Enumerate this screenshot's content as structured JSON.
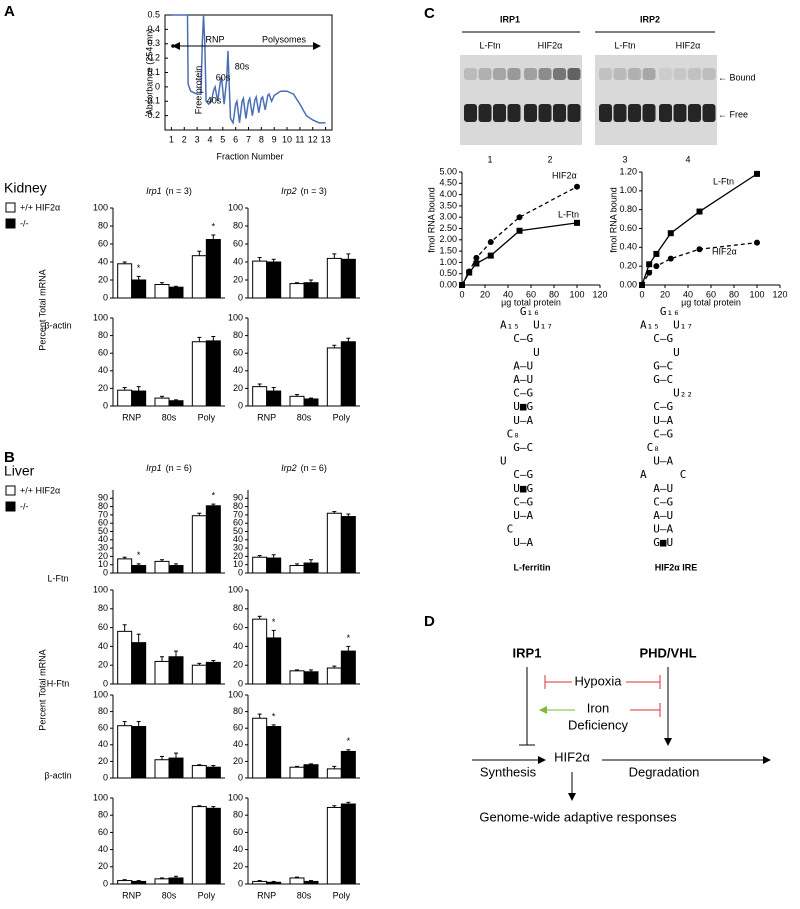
{
  "panels": [
    "A",
    "B",
    "C",
    "D"
  ],
  "chart_data": [
    {
      "type": "line",
      "ylabel": "Absorbance (254 mn)",
      "xlabel": "Fraction Number",
      "xlim": [
        0.5,
        13.5
      ],
      "xticks": [
        1,
        2,
        3,
        4,
        5,
        6,
        7,
        8,
        9,
        10,
        11,
        12,
        13
      ],
      "ylim": [
        -0.3,
        0.5
      ],
      "yticks": [
        -0.2,
        -0.1,
        0,
        0.1,
        0.2,
        0.3,
        0.4,
        0.5
      ],
      "annotations": [
        "RNP",
        "Polysomes",
        "Free protein",
        "40s",
        "60s",
        "80s"
      ],
      "x": [
        1,
        1.5,
        2,
        2.25,
        2.3,
        2.5,
        3,
        3.3,
        3.4,
        3.5,
        3.6,
        3.7,
        3.9,
        4.1,
        4.3,
        4.4,
        4.6,
        4.8,
        4.9,
        5.1,
        5.3,
        5.4,
        5.6,
        5.8,
        6.0,
        6.1,
        6.3,
        6.5,
        6.6,
        6.8,
        7.0,
        7.1,
        7.3,
        7.5,
        7.6,
        7.8,
        8.0,
        8.1,
        8.3,
        8.5,
        8.6,
        8.8,
        9.0,
        9.5,
        10,
        10.5,
        11,
        11.5,
        12,
        12.5,
        13
      ],
      "series": [
        {
          "color": "#4a6fb5",
          "values": [
            0.5,
            0.5,
            0.5,
            0.5,
            0.02,
            -0.03,
            -0.05,
            -0.05,
            0.3,
            0.5,
            0.3,
            -0.1,
            -0.12,
            -0.1,
            -0.02,
            0.0,
            -0.1,
            0.03,
            0.07,
            -0.12,
            0.05,
            0.25,
            -0.22,
            -0.25,
            -0.12,
            -0.1,
            -0.25,
            -0.1,
            -0.08,
            -0.22,
            -0.1,
            -0.08,
            -0.2,
            -0.09,
            -0.07,
            -0.18,
            -0.08,
            -0.07,
            -0.16,
            -0.06,
            -0.05,
            -0.1,
            -0.06,
            -0.03,
            -0.03,
            -0.05,
            -0.12,
            -0.2,
            -0.23,
            -0.25,
            -0.25
          ]
        }
      ]
    },
    {
      "type": "bar",
      "group_title": "Kidney",
      "ylabel": "Percent Total mRNA",
      "title": "Irp1",
      "subtitle": "(n = 3)",
      "categories": [
        null,
        null,
        null
      ],
      "ylim": [
        0,
        100
      ],
      "yticks": [
        0,
        20,
        40,
        60,
        80,
        100
      ],
      "series": [
        {
          "name": "+/+  HIF2α",
          "color": "#ffffff",
          "values": [
            38,
            15,
            47
          ],
          "errors": [
            2,
            2,
            5
          ]
        },
        {
          "name": "-/-",
          "color": "#000000",
          "values": [
            20,
            12,
            65
          ],
          "errors": [
            4,
            1,
            5
          ],
          "significance": [
            "*",
            null,
            "*"
          ]
        }
      ]
    },
    {
      "type": "bar",
      "title": "Irp2",
      "subtitle": "(n = 3)",
      "categories": [
        null,
        null,
        null
      ],
      "ylim": [
        0,
        100
      ],
      "yticks": [
        0,
        20,
        40,
        60,
        80,
        100
      ],
      "series": [
        {
          "color": "#ffffff",
          "values": [
            41,
            16,
            44
          ],
          "errors": [
            4,
            1,
            5
          ]
        },
        {
          "color": "#000000",
          "values": [
            40,
            17,
            43
          ],
          "errors": [
            3,
            3,
            6
          ]
        }
      ]
    },
    {
      "type": "bar",
      "row_label": "β-actin",
      "categories": [
        "RNP",
        "80s",
        "Poly"
      ],
      "ylim": [
        0,
        100
      ],
      "yticks": [
        0,
        20,
        40,
        60,
        80,
        100
      ],
      "series": [
        {
          "color": "#ffffff",
          "values": [
            18,
            9,
            73
          ],
          "errors": [
            3,
            2,
            5
          ]
        },
        {
          "color": "#000000",
          "values": [
            17,
            6,
            74
          ],
          "errors": [
            5,
            1,
            5
          ]
        }
      ]
    },
    {
      "type": "bar",
      "categories": [
        "RNP",
        "80s",
        "Poly"
      ],
      "ylim": [
        0,
        100
      ],
      "yticks": [
        0,
        20,
        40,
        60,
        80,
        100
      ],
      "series": [
        {
          "color": "#ffffff",
          "values": [
            22,
            11,
            66
          ],
          "errors": [
            3,
            2,
            3
          ]
        },
        {
          "color": "#000000",
          "values": [
            17,
            8,
            73
          ],
          "errors": [
            4,
            1,
            4
          ]
        }
      ]
    },
    {
      "type": "bar",
      "group_title": "Liver",
      "ylabel": "Percent Total mRNA",
      "title": "Irp1",
      "subtitle": "(n = 6)",
      "categories": [
        null,
        null,
        null
      ],
      "ylim": [
        0,
        100
      ],
      "yticks": [
        0,
        10,
        20,
        30,
        40,
        50,
        60,
        70,
        80,
        90
      ],
      "series": [
        {
          "name": "+/+  HIF2α",
          "color": "#ffffff",
          "values": [
            17,
            14,
            69
          ],
          "errors": [
            2,
            2,
            3
          ]
        },
        {
          "name": "-/-",
          "color": "#000000",
          "values": [
            9,
            9,
            81
          ],
          "errors": [
            2,
            2,
            2
          ],
          "significance": [
            "*",
            null,
            "*"
          ]
        }
      ]
    },
    {
      "type": "bar",
      "title": "Irp2",
      "subtitle": "(n = 6)",
      "categories": [
        null,
        null,
        null
      ],
      "ylim": [
        0,
        100
      ],
      "yticks": [
        0,
        10,
        20,
        30,
        40,
        50,
        60,
        70,
        80,
        90
      ],
      "series": [
        {
          "color": "#ffffff",
          "values": [
            19,
            9,
            72
          ],
          "errors": [
            2,
            2,
            2
          ]
        },
        {
          "color": "#000000",
          "values": [
            18,
            12,
            68
          ],
          "errors": [
            4,
            4,
            3
          ]
        }
      ]
    },
    {
      "type": "bar",
      "row_label": "L-Ftn",
      "categories": [
        null,
        null,
        null
      ],
      "ylim": [
        0,
        100
      ],
      "yticks": [
        0,
        20,
        40,
        60,
        80,
        100
      ],
      "series": [
        {
          "color": "#ffffff",
          "values": [
            56,
            24,
            20
          ],
          "errors": [
            7,
            5,
            2
          ]
        },
        {
          "color": "#000000",
          "values": [
            44,
            29,
            23
          ],
          "errors": [
            9,
            6,
            2
          ]
        }
      ]
    },
    {
      "type": "bar",
      "categories": [
        null,
        null,
        null
      ],
      "ylim": [
        0,
        100
      ],
      "yticks": [
        0,
        20,
        40,
        60,
        80,
        100
      ],
      "series": [
        {
          "color": "#ffffff",
          "values": [
            69,
            14,
            17
          ],
          "errors": [
            3,
            1,
            2
          ]
        },
        {
          "color": "#000000",
          "values": [
            49,
            13,
            35
          ],
          "errors": [
            8,
            2,
            5
          ],
          "significance": [
            "*",
            null,
            "*"
          ]
        }
      ]
    },
    {
      "type": "bar",
      "row_label": "H-Ftn",
      "categories": [
        null,
        null,
        null
      ],
      "ylim": [
        0,
        100
      ],
      "yticks": [
        0,
        20,
        40,
        60,
        80,
        100
      ],
      "series": [
        {
          "color": "#ffffff",
          "values": [
            63,
            22,
            15
          ],
          "errors": [
            5,
            4,
            1
          ]
        },
        {
          "color": "#000000",
          "values": [
            62,
            24,
            13
          ],
          "errors": [
            6,
            6,
            2
          ]
        }
      ]
    },
    {
      "type": "bar",
      "categories": [
        null,
        null,
        null
      ],
      "ylim": [
        0,
        100
      ],
      "yticks": [
        0,
        20,
        40,
        60,
        80,
        100
      ],
      "series": [
        {
          "color": "#ffffff",
          "values": [
            72,
            13,
            11
          ],
          "errors": [
            5,
            1,
            3
          ]
        },
        {
          "color": "#000000",
          "values": [
            62,
            16,
            32
          ],
          "errors": [
            2,
            1,
            2
          ],
          "significance": [
            "*",
            null,
            "*"
          ]
        }
      ]
    },
    {
      "type": "bar",
      "row_label": "β-actin",
      "categories": [
        "RNP",
        "80s",
        "Poly"
      ],
      "ylim": [
        0,
        100
      ],
      "yticks": [
        0,
        20,
        40,
        60,
        80,
        100
      ],
      "series": [
        {
          "color": "#ffffff",
          "values": [
            4,
            6,
            90
          ],
          "errors": [
            1,
            1,
            1
          ]
        },
        {
          "color": "#000000",
          "values": [
            3,
            7,
            88
          ],
          "errors": [
            1,
            2,
            2
          ]
        }
      ]
    },
    {
      "type": "bar",
      "categories": [
        "RNP",
        "80s",
        "Poly"
      ],
      "ylim": [
        0,
        100
      ],
      "yticks": [
        0,
        20,
        40,
        60,
        80,
        100
      ],
      "series": [
        {
          "color": "#ffffff",
          "values": [
            3,
            7,
            89
          ],
          "errors": [
            1,
            1,
            2
          ]
        },
        {
          "color": "#000000",
          "values": [
            2,
            3,
            93
          ],
          "errors": [
            1,
            1,
            2
          ]
        }
      ]
    },
    {
      "type": "line",
      "ylabel": "fmol RNA bound",
      "xlabel": "µg total protein",
      "xlim": [
        0,
        120
      ],
      "xticks": [
        0,
        20,
        40,
        60,
        80,
        100,
        120
      ],
      "ylim": [
        0,
        5
      ],
      "yticks": [
        {
          "value": 0,
          "label": "0.00"
        },
        {
          "value": 0.5,
          "label": "0.50"
        },
        {
          "value": 1,
          "label": "1.00"
        },
        {
          "value": 1.5,
          "label": "1.50"
        },
        {
          "value": 2,
          "label": "2.00"
        },
        {
          "value": 2.5,
          "label": "2.50"
        },
        {
          "value": 3,
          "label": "3.00"
        },
        {
          "value": 3.5,
          "label": "3.50"
        },
        {
          "value": 4,
          "label": "4.00"
        },
        {
          "value": 4.5,
          "label": "4.50"
        },
        {
          "value": 5,
          "label": "5.00"
        }
      ],
      "x": [
        0,
        6.25,
        12.5,
        25,
        50,
        100
      ],
      "series": [
        {
          "name": "HIF2α",
          "color": "#000000",
          "marker": "circle",
          "dash": true,
          "values": [
            0,
            0.6,
            1.2,
            1.9,
            3.0,
            4.35
          ]
        },
        {
          "name": "L-Ftn",
          "color": "#000000",
          "marker": "square",
          "dash": false,
          "values": [
            0,
            0.55,
            0.95,
            1.3,
            2.4,
            2.75
          ]
        }
      ]
    },
    {
      "type": "line",
      "ylabel": "fmol RNA bound",
      "xlabel": "µg total protein",
      "xlim": [
        0,
        120
      ],
      "xticks": [
        0,
        20,
        40,
        60,
        80,
        100,
        120
      ],
      "ylim": [
        0,
        1.2
      ],
      "yticks": [
        {
          "value": 0,
          "label": "0.00"
        },
        {
          "value": 0.2,
          "label": "0.20"
        },
        {
          "value": 0.4,
          "label": "0.40"
        },
        {
          "value": 0.6,
          "label": "0.60"
        },
        {
          "value": 0.8,
          "label": "0.80"
        },
        {
          "value": 1,
          "label": "1.00"
        },
        {
          "value": 1.2,
          "label": "1.20"
        }
      ],
      "x": [
        0,
        6.25,
        12.5,
        25,
        50,
        100
      ],
      "series": [
        {
          "name": "HIF2α",
          "color": "#000000",
          "marker": "circle",
          "dash": true,
          "values": [
            0,
            0.13,
            0.2,
            0.28,
            0.38,
            0.45
          ]
        },
        {
          "name": "L-Ftn",
          "color": "#000000",
          "marker": "square",
          "dash": false,
          "values": [
            0,
            0.22,
            0.33,
            0.55,
            0.78,
            1.18
          ]
        }
      ]
    }
  ],
  "gel": {
    "headers": [
      "IRP1",
      "IRP2"
    ],
    "lanes": [
      "L-Ftn",
      "HIF2α",
      "L-Ftn",
      "HIF2α"
    ],
    "numbers": [
      "1",
      "2",
      "3",
      "4"
    ],
    "bands": [
      "← Bound",
      "← Free"
    ]
  },
  "rna": [
    {
      "label": "L-ferritin",
      "rows": [
        "   G₁₆",
        "A₁₅  U₁₇",
        "  C–G",
        "     U",
        "  A–U",
        "  A–U",
        "  C–G",
        "  U■G",
        "  U–A",
        " C₈",
        "  G–C",
        "U",
        "  C–G",
        "  U■G",
        "  C–G",
        "  U–A",
        " C",
        "  U–A"
      ]
    },
    {
      "label": "HIF2α IRE",
      "rows": [
        "   G₁₆",
        "A₁₅  U₁₇",
        "  C–G",
        "     U",
        "  G–C",
        "  G–C",
        "     U₂₂",
        "  C–G",
        "  U–A",
        "  C–G",
        " C₈",
        "  U–A",
        "A     C",
        "  A–U",
        "  C–G",
        "  A–U",
        "  U–A",
        "  G■U"
      ]
    }
  ],
  "pathway": {
    "nodes": [
      "IRP1",
      "PHD/VHL",
      "Hypoxia",
      "Iron",
      "Deficiency",
      "Synthesis",
      "HIF2α",
      "Degradation",
      "Genome-wide adaptive responses"
    ]
  }
}
